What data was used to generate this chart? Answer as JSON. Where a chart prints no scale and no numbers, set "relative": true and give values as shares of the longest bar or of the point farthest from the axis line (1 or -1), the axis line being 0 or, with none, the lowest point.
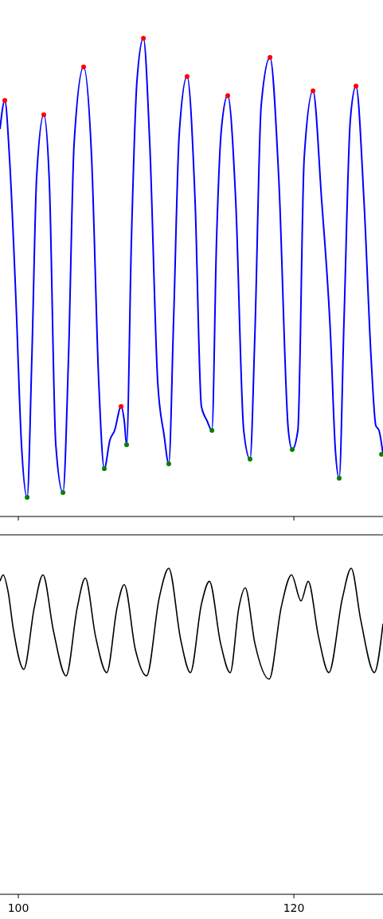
{
  "chart_data": [
    {
      "type": "line",
      "relative": true,
      "xlim": [
        98.67,
        126.47
      ],
      "xticks": [
        {
          "value": 100,
          "label": null
        },
        {
          "value": 120,
          "label": null
        }
      ],
      "tick_labels": false,
      "series": [
        {
          "color": "#0000ff",
          "x": [
            98.67,
            99.02,
            99.36,
            99.83,
            100.23,
            100.64,
            100.98,
            101.33,
            101.85,
            102.25,
            102.72,
            103.24,
            103.64,
            104.05,
            104.74,
            105.32,
            105.84,
            106.24,
            106.65,
            106.99,
            107.46,
            107.69,
            107.86,
            108.21,
            108.61,
            109.08,
            109.54,
            110.12,
            110.58,
            110.92,
            111.27,
            111.68,
            112.25,
            112.83,
            113.29,
            113.7,
            114.05,
            114.39,
            114.74,
            115.2,
            115.78,
            116.36,
            116.82,
            117.17,
            117.63,
            118.27,
            118.9,
            119.6,
            119.88,
            120.29,
            120.75,
            121.39,
            122.02,
            122.66,
            123.01,
            123.29,
            123.64,
            124.1,
            124.51,
            125.09,
            125.61,
            125.95,
            126.18,
            126.47
          ],
          "values": [
            0.81,
            0.87,
            0.75,
            0.45,
            0.15,
            0.04,
            0.33,
            0.71,
            0.84,
            0.7,
            0.15,
            0.05,
            0.33,
            0.78,
            0.94,
            0.75,
            0.28,
            0.1,
            0.16,
            0.18,
            0.23,
            0.2,
            0.15,
            0.58,
            0.91,
            1,
            0.78,
            0.28,
            0.17,
            0.11,
            0.41,
            0.8,
            0.92,
            0.66,
            0.23,
            0.2,
            0.18,
            0.58,
            0.81,
            0.88,
            0.66,
            0.18,
            0.12,
            0.38,
            0.86,
            0.96,
            0.71,
            0.18,
            0.14,
            0.18,
            0.75,
            0.89,
            0.66,
            0.38,
            0.14,
            0.08,
            0.41,
            0.83,
            0.9,
            0.66,
            0.33,
            0.19,
            0.18,
            0.13
          ]
        },
        {
          "type": "scatter",
          "marker": "circle",
          "color": "#ff0000",
          "x": [
            99.02,
            101.85,
            104.74,
            107.46,
            109.08,
            112.25,
            115.2,
            118.27,
            121.39,
            124.51
          ],
          "values": [
            0.87,
            0.84,
            0.94,
            0.23,
            1,
            0.92,
            0.88,
            0.96,
            0.89,
            0.9
          ]
        },
        {
          "type": "scatter",
          "marker": "circle",
          "color": "#008000",
          "x": [
            100.64,
            103.24,
            106.24,
            107.86,
            110.92,
            114.05,
            116.82,
            119.88,
            123.29,
            126.36
          ],
          "values": [
            0.04,
            0.05,
            0.1,
            0.15,
            0.11,
            0.18,
            0.12,
            0.14,
            0.08,
            0.13
          ]
        }
      ]
    },
    {
      "type": "line",
      "relative": true,
      "xlim": [
        98.67,
        126.47
      ],
      "xticks": [
        100,
        120
      ],
      "tick_labels": "x",
      "series": [
        {
          "color": "#000000",
          "x": [
            98.67,
            98.9,
            99.25,
            99.65,
            100.4,
            101.16,
            101.79,
            102.54,
            103.47,
            104.28,
            104.86,
            105.61,
            106.42,
            107.17,
            107.69,
            108.5,
            109.31,
            110.23,
            110.92,
            111.79,
            112.49,
            113.29,
            113.87,
            114.68,
            115.38,
            116.01,
            116.47,
            117.17,
            118.21,
            119.08,
            119.83,
            120.52,
            121.04,
            121.79,
            122.54,
            123.53,
            124.16,
            124.86,
            125.84,
            126.47
          ],
          "values": [
            0.96,
            0.98,
            0.93,
            0.81,
            0.69,
            0.88,
            0.98,
            0.81,
            0.67,
            0.88,
            0.97,
            0.79,
            0.68,
            0.88,
            0.95,
            0.75,
            0.67,
            0.91,
            1,
            0.78,
            0.68,
            0.89,
            0.96,
            0.77,
            0.68,
            0.88,
            0.94,
            0.77,
            0.66,
            0.88,
            0.98,
            0.9,
            0.96,
            0.79,
            0.68,
            0.91,
            1,
            0.84,
            0.68,
            0.83
          ]
        }
      ]
    }
  ]
}
